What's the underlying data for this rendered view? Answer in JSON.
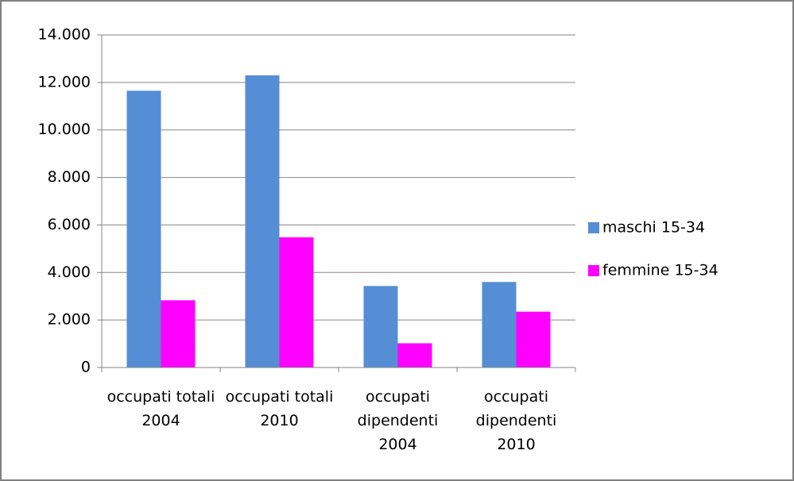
{
  "chart_data": {
    "type": "bar",
    "categories": [
      "occupati totali 2004",
      "occupati totali 2010",
      "occupati dipendenti 2004",
      "occupati dipendenti 2010"
    ],
    "series": [
      {
        "name": "maschi 15-34",
        "color": "#558ed5",
        "values": [
          11650,
          12300,
          3430,
          3600
        ]
      },
      {
        "name": "femmine 15-34",
        "color": "#ff00ff",
        "values": [
          2830,
          5480,
          1020,
          2350
        ]
      }
    ],
    "ylim": [
      0,
      14000
    ],
    "yticks": [
      0,
      {
        "value": 2000,
        "label": "2.000"
      },
      {
        "value": 4000,
        "label": "4.000"
      },
      {
        "value": 6000,
        "label": "6.000"
      },
      {
        "value": 8000,
        "label": "8.000"
      },
      {
        "value": 10000,
        "label": "10.000"
      },
      {
        "value": 12000,
        "label": "12.000"
      },
      {
        "value": 14000,
        "label": "14.000"
      }
    ],
    "grid": true,
    "legend": "right"
  }
}
